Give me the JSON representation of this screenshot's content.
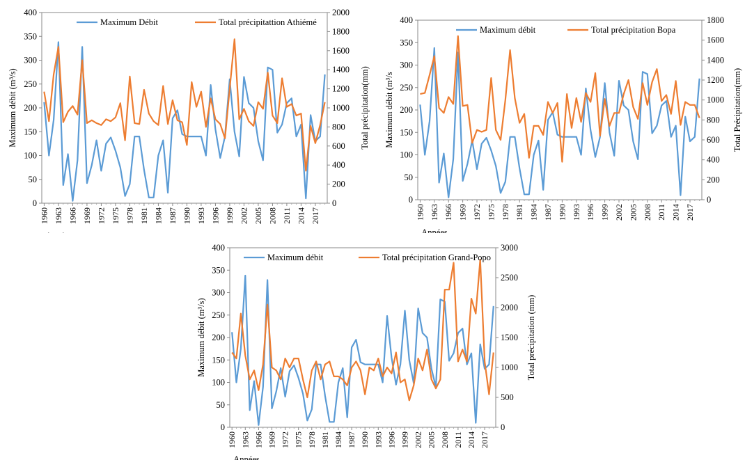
{
  "colors": {
    "debit": "#5b9bd5",
    "precip": "#ed7d31"
  },
  "chart_data": [
    {
      "id": "athieme",
      "type": "line",
      "x_start": 1960,
      "x_end": 2019,
      "xtick_labels": [
        "1960",
        "1963",
        "1966",
        "1969",
        "1972",
        "1975",
        "1978",
        "1981",
        "1984",
        "1987",
        "1990",
        "1993",
        "1996",
        "1999",
        "2002",
        "2005",
        "2008",
        "2011",
        "2014",
        "2017"
      ],
      "xlabel": "Années",
      "ylabel_left": "Maximum débit (m³/s)",
      "ylabel_right": "Total précipitation(mm)",
      "ylim_left": [
        0,
        400
      ],
      "yticks_left": [
        0,
        50,
        100,
        150,
        200,
        250,
        300,
        350,
        400
      ],
      "ylim_right": [
        0,
        2000
      ],
      "yticks_right": [
        0,
        200,
        400,
        600,
        800,
        1000,
        1200,
        1400,
        1600,
        1800,
        2000
      ],
      "legend_position": "top",
      "series": [
        {
          "name": "Maximum Débit",
          "axis": "left",
          "color_key": "debit",
          "values": [
            212,
            100,
            175,
            338,
            38,
            103,
            5,
            90,
            328,
            42,
            80,
            132,
            68,
            125,
            138,
            110,
            75,
            15,
            40,
            140,
            140,
            70,
            12,
            12,
            100,
            132,
            22,
            178,
            195,
            145,
            140,
            140,
            140,
            140,
            100,
            248,
            155,
            95,
            140,
            260,
            150,
            98,
            265,
            210,
            200,
            130,
            90,
            285,
            280,
            148,
            165,
            210,
            220,
            140,
            165,
            10,
            185,
            130,
            140,
            270
          ]
        },
        {
          "name": "Total précipitattion Athiémé",
          "axis": "right",
          "color_key": "precip",
          "values": [
            1170,
            860,
            1350,
            1640,
            850,
            960,
            1020,
            930,
            1500,
            840,
            870,
            840,
            820,
            880,
            860,
            900,
            1050,
            660,
            1330,
            840,
            830,
            1190,
            940,
            860,
            820,
            1230,
            830,
            1080,
            870,
            850,
            610,
            1270,
            1010,
            1170,
            800,
            1100,
            880,
            830,
            680,
            1200,
            1720,
            880,
            990,
            860,
            810,
            1060,
            990,
            1370,
            920,
            840,
            1310,
            1010,
            1040,
            920,
            940,
            340,
            810,
            630,
            820,
            1060
          ]
        }
      ]
    },
    {
      "id": "bopa",
      "type": "line",
      "x_start": 1960,
      "x_end": 2019,
      "xtick_labels": [
        "1960",
        "1963",
        "1966",
        "1969",
        "1972",
        "1975",
        "1978",
        "1981",
        "1984",
        "1987",
        "1990",
        "1993",
        "1996",
        "1999",
        "2002",
        "2005",
        "2008",
        "2011",
        "2014",
        "2017"
      ],
      "xlabel": "Années",
      "ylabel_left": "Maximum débit (m³/s",
      "ylabel_right": "Total Précipitation(mm)",
      "ylim_left": [
        0,
        400
      ],
      "yticks_left": [
        0,
        50,
        100,
        150,
        200,
        250,
        300,
        350,
        400
      ],
      "ylim_right": [
        0,
        1800
      ],
      "yticks_right": [
        0,
        200,
        400,
        600,
        800,
        1000,
        1200,
        1400,
        1600,
        1800
      ],
      "legend_position": "top",
      "series": [
        {
          "name": "Maximum débit",
          "axis": "left",
          "color_key": "debit",
          "values": [
            212,
            100,
            175,
            338,
            38,
            103,
            5,
            90,
            328,
            42,
            80,
            132,
            68,
            125,
            138,
            110,
            75,
            15,
            40,
            140,
            140,
            70,
            12,
            12,
            100,
            132,
            22,
            178,
            195,
            145,
            140,
            140,
            140,
            140,
            100,
            248,
            155,
            95,
            140,
            260,
            150,
            98,
            265,
            210,
            200,
            130,
            90,
            285,
            280,
            148,
            165,
            210,
            220,
            140,
            165,
            10,
            185,
            130,
            140,
            270
          ]
        },
        {
          "name": "Total précipitation Bopa",
          "axis": "right",
          "color_key": "precip",
          "values": [
            1060,
            1070,
            1250,
            1440,
            920,
            870,
            1030,
            960,
            1640,
            940,
            950,
            570,
            700,
            680,
            700,
            1220,
            700,
            600,
            1000,
            1500,
            1020,
            770,
            860,
            420,
            740,
            740,
            650,
            980,
            870,
            970,
            380,
            1060,
            720,
            1020,
            780,
            1070,
            980,
            1270,
            640,
            1010,
            740,
            870,
            870,
            1060,
            1200,
            930,
            810,
            1170,
            950,
            1180,
            1310,
            990,
            1050,
            860,
            1190,
            750,
            980,
            950,
            950,
            820
          ]
        }
      ]
    },
    {
      "id": "grandpopo",
      "type": "line",
      "x_start": 1960,
      "x_end": 2019,
      "xtick_labels": [
        "1960",
        "1963",
        "1966",
        "1969",
        "1972",
        "1975",
        "1978",
        "1981",
        "1984",
        "1987",
        "1990",
        "1993",
        "1996",
        "1999",
        "2002",
        "2005",
        "2008",
        "2011",
        "2014",
        "2017"
      ],
      "xlabel": "Années",
      "ylabel_left": "Maximum débit (m³/s)",
      "ylabel_right": "Total précipitation (mm)",
      "ylim_left": [
        0,
        400
      ],
      "yticks_left": [
        0,
        50,
        100,
        150,
        200,
        250,
        300,
        350,
        400
      ],
      "ylim_right": [
        0,
        3000
      ],
      "yticks_right": [
        0,
        500,
        1000,
        1500,
        2000,
        2500,
        3000
      ],
      "legend_position": "top",
      "series": [
        {
          "name": "Maximum débit",
          "axis": "left",
          "color_key": "debit",
          "values": [
            212,
            100,
            175,
            338,
            38,
            103,
            5,
            90,
            328,
            42,
            80,
            132,
            68,
            125,
            138,
            110,
            75,
            15,
            40,
            140,
            140,
            70,
            12,
            12,
            100,
            132,
            22,
            178,
            195,
            145,
            140,
            140,
            140,
            140,
            100,
            248,
            155,
            95,
            140,
            260,
            150,
            98,
            265,
            210,
            200,
            130,
            90,
            285,
            280,
            148,
            165,
            210,
            220,
            140,
            165,
            10,
            185,
            130,
            140,
            270
          ]
        },
        {
          "name": "Total précipitation Grand-Popo",
          "axis": "right",
          "color_key": "precip",
          "values": [
            1250,
            1150,
            1900,
            1200,
            800,
            950,
            620,
            1050,
            2050,
            1000,
            950,
            800,
            1150,
            1000,
            1150,
            1150,
            800,
            500,
            950,
            1100,
            800,
            1050,
            1100,
            850,
            850,
            800,
            700,
            1000,
            1100,
            950,
            550,
            1000,
            950,
            1150,
            850,
            1000,
            900,
            1250,
            750,
            800,
            450,
            700,
            1150,
            950,
            1300,
            800,
            650,
            800,
            2300,
            2300,
            2750,
            1100,
            1300,
            1100,
            2150,
            1900,
            2800,
            1100,
            550,
            1250
          ]
        }
      ]
    }
  ]
}
